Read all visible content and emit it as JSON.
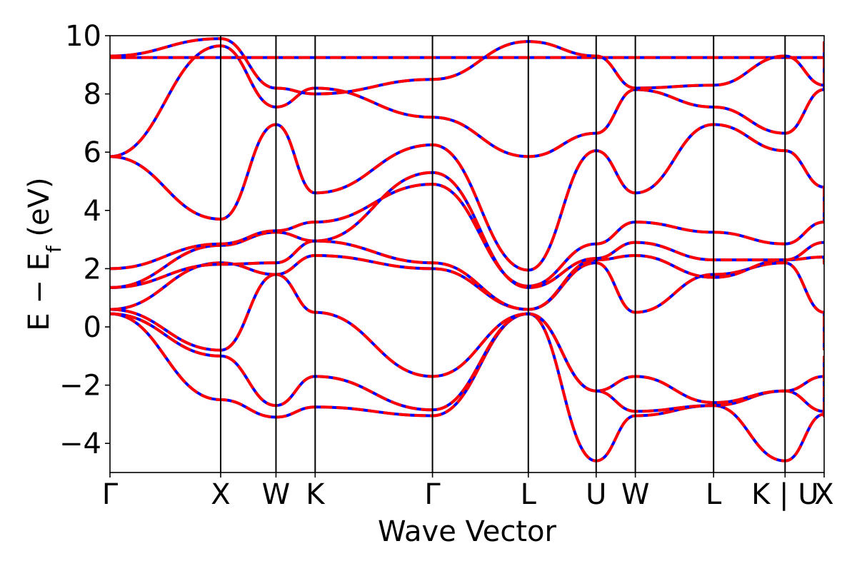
{
  "chart_data": {
    "type": "line",
    "xlabel": "Wave Vector",
    "ylabel": "E − E_f (eV)",
    "ylabel_parts": {
      "main": "E  −  E",
      "sub": "f",
      "unit": " (eV)"
    },
    "ylim": [
      -5,
      10
    ],
    "yticks": [
      -4,
      -2,
      0,
      2,
      4,
      6,
      8,
      10
    ],
    "ytick_labels": [
      "−4",
      "−2",
      "0",
      "2",
      "4",
      "6",
      "8",
      "10"
    ],
    "xlim": [
      0,
      6.453
    ],
    "kpoints": [
      {
        "label": "Γ",
        "x": 0.0
      },
      {
        "label": "X",
        "x": 1.0
      },
      {
        "label": "W",
        "x": 1.5
      },
      {
        "label": "K",
        "x": 1.854
      },
      {
        "label": "Γ",
        "x": 2.914
      },
      {
        "label": "L",
        "x": 3.78
      },
      {
        "label": "U",
        "x": 4.393
      },
      {
        "label": "W",
        "x": 4.747
      },
      {
        "label": "L",
        "x": 5.454
      },
      {
        "label": "K | U",
        "x": 6.1
      },
      {
        "label": "X",
        "x": 6.453
      }
    ],
    "grid": false,
    "series_styles": [
      {
        "color": "#0000ff",
        "dash": "none"
      },
      {
        "color": "#ff0000",
        "dash": "dashed"
      }
    ],
    "bands": [
      {
        "values": [
          0.45,
          -2.5,
          -3.1,
          -2.75,
          -3.05,
          0.45,
          -4.6,
          -3.05,
          -2.7,
          -4.6,
          -3.0,
          -3.1
        ]
      },
      {
        "values": [
          0.45,
          -1.0,
          -2.7,
          -1.7,
          -2.85,
          0.45,
          -2.2,
          -2.9,
          -2.7,
          -2.2,
          -2.9,
          -1.0
        ]
      },
      {
        "values": [
          0.6,
          -0.8,
          1.8,
          0.5,
          -1.7,
          0.45,
          -2.2,
          -1.7,
          -2.6,
          -2.2,
          -1.7,
          -1.0
        ]
      },
      {
        "values": [
          0.6,
          2.2,
          1.8,
          2.45,
          2.0,
          0.6,
          2.2,
          0.5,
          1.8,
          2.2,
          0.5,
          -0.8
        ]
      },
      {
        "values": [
          1.35,
          2.15,
          2.2,
          2.95,
          2.2,
          0.6,
          2.3,
          2.45,
          1.7,
          2.3,
          2.4,
          2.15
        ]
      },
      {
        "values": [
          1.35,
          2.8,
          3.25,
          2.95,
          5.3,
          1.35,
          2.35,
          2.9,
          2.3,
          2.3,
          2.9,
          2.85
        ]
      },
      {
        "values": [
          2.0,
          2.85,
          3.3,
          3.6,
          4.9,
          1.4,
          2.85,
          3.6,
          3.25,
          2.85,
          3.6,
          3.7
        ]
      },
      {
        "values": [
          5.85,
          3.7,
          6.95,
          4.6,
          6.25,
          1.95,
          6.05,
          4.6,
          6.95,
          6.05,
          4.8,
          3.7
        ]
      },
      {
        "values": [
          5.85,
          9.65,
          7.55,
          8.2,
          7.2,
          5.85,
          6.65,
          8.15,
          7.55,
          6.65,
          8.15,
          9.65
        ]
      },
      {
        "values": [
          9.25,
          9.25,
          9.25,
          9.25,
          9.25,
          9.25,
          9.25,
          9.25,
          9.25,
          9.25,
          9.25,
          9.25
        ]
      },
      {
        "values": [
          9.3,
          9.9,
          8.2,
          8.0,
          8.5,
          9.8,
          9.3,
          8.2,
          8.3,
          9.3,
          8.3,
          9.8
        ]
      }
    ]
  }
}
